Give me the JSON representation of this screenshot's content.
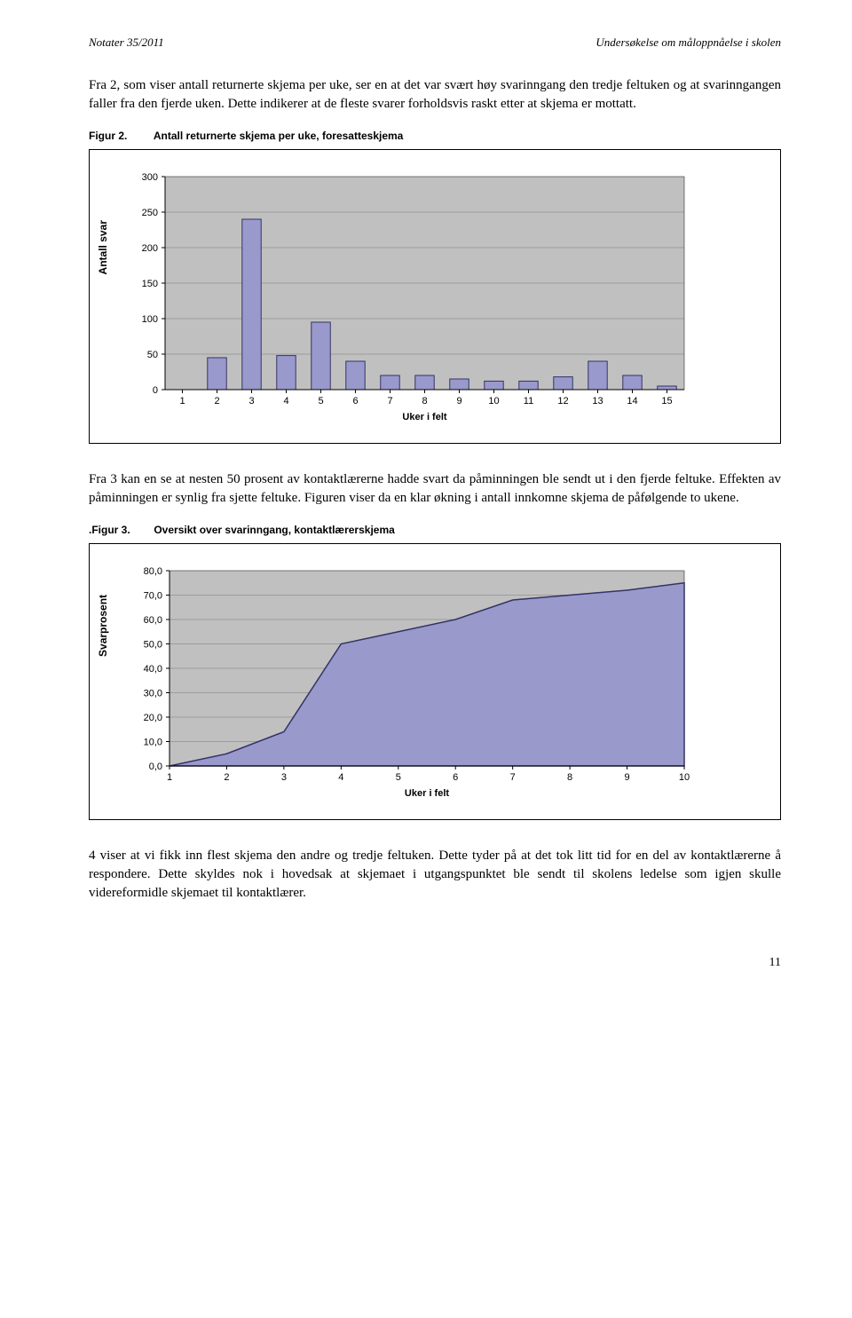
{
  "header": {
    "left": "Notater 35/2011",
    "right": "Undersøkelse om måloppnåelse i skolen"
  },
  "para1": "Fra 2, som viser antall returnerte skjema per uke, ser en at det var svært høy svarinngang den tredje feltuken og at svarinngangen faller fra den fjerde uken. Dette indikerer at de fleste svarer forholdsvis raskt etter at skjema er mottatt.",
  "fig2": {
    "num": "Figur 2.",
    "title": "Antall returnerte skjema per uke, foresatteskjema"
  },
  "chart1": {
    "type": "bar",
    "x_categories": [
      "1",
      "2",
      "3",
      "4",
      "5",
      "6",
      "7",
      "8",
      "9",
      "10",
      "11",
      "12",
      "13",
      "14",
      "15"
    ],
    "values": [
      0,
      45,
      240,
      48,
      95,
      40,
      20,
      20,
      15,
      12,
      12,
      18,
      40,
      20,
      5
    ],
    "ylim": [
      0,
      300
    ],
    "ytick_step": 50,
    "bar_color": "#9999cc",
    "bar_border": "#333366",
    "plot_bg": "#c0c0c0",
    "grid_color": "#7a7a7a",
    "x_axis_title": "Uker i felt",
    "y_axis_title": "Antall svar",
    "font_family": "Arial",
    "font_size": 11,
    "bar_width_ratio": 0.55
  },
  "para2": "Fra 3 kan en se at nesten 50 prosent av kontaktlærerne hadde svart da påminningen ble sendt ut i den fjerde feltuke. Effekten av påminningen er synlig fra sjette feltuke. Figuren viser da en klar økning i antall innkomne skjema de påfølgende to ukene.",
  "fig3": {
    "num": ".Figur 3.",
    "title": "Oversikt over svarinngang, kontaktlærerskjema"
  },
  "chart2": {
    "type": "area",
    "x_categories": [
      "1",
      "2",
      "3",
      "4",
      "5",
      "6",
      "7",
      "8",
      "9",
      "10"
    ],
    "values": [
      0,
      5,
      14,
      50,
      55,
      60,
      68,
      70,
      72,
      75
    ],
    "ylim": [
      0,
      80
    ],
    "y_ticks": [
      "0,0",
      "10,0",
      "20,0",
      "30,0",
      "40,0",
      "50,0",
      "60,0",
      "70,0",
      "80,0"
    ],
    "ytick_step": 10,
    "fill_color": "#9999cc",
    "line_color": "#333366",
    "plot_bg": "#c0c0c0",
    "grid_color": "#7a7a7a",
    "x_axis_title": "Uker i felt",
    "y_axis_title": "Svarprosent",
    "font_family": "Arial",
    "font_size": 11
  },
  "para3": "4 viser at vi fikk inn flest skjema den andre og tredje feltuken. Dette tyder på at det tok litt tid for en del av kontaktlærerne å respondere. Dette skyldes nok i hovedsak at skjemaet i utgangspunktet ble sendt til skolens ledelse som igjen skulle videreformidle skjemaet til kontaktlærer.",
  "page_number": "11"
}
